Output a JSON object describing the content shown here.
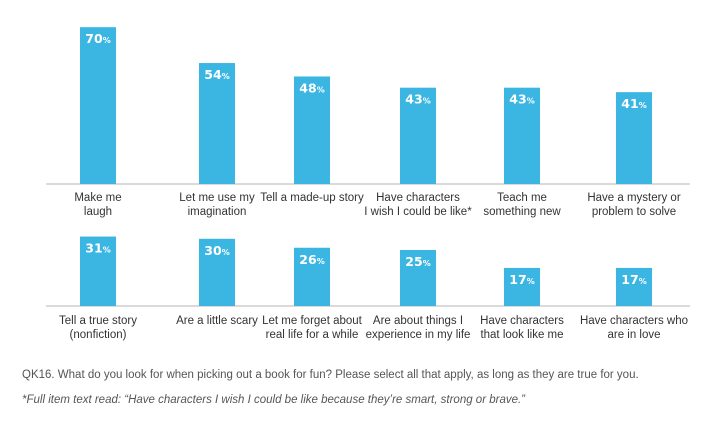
{
  "chart_data": [
    {
      "type": "bar",
      "categories": [
        [
          "Make me",
          "laugh"
        ],
        [
          "Let me use my",
          "imagination"
        ],
        [
          "Tell a made-up story"
        ],
        [
          "Have characters",
          "I wish I could be like*"
        ],
        [
          "Teach me",
          "something new"
        ],
        [
          "Have a mystery or",
          "problem to solve"
        ]
      ],
      "values": [
        70,
        54,
        48,
        43,
        43,
        41
      ],
      "data_labels": [
        "70%",
        "54%",
        "48%",
        "43%",
        "43%",
        "41%"
      ],
      "color": "#3bb6e3",
      "ylim": [
        0,
        70
      ]
    },
    {
      "type": "bar",
      "categories": [
        [
          "Tell a true story",
          "(nonfiction)"
        ],
        [
          "Are a little scary"
        ],
        [
          "Let me forget about",
          "real life for a while"
        ],
        [
          "Are about things I",
          "experience in my life"
        ],
        [
          "Have characters",
          "that look like me"
        ],
        [
          "Have characters who",
          "are in love"
        ]
      ],
      "values": [
        31,
        30,
        26,
        25,
        17,
        17
      ],
      "data_labels": [
        "31%",
        "30%",
        "26%",
        "25%",
        "17%",
        "17%"
      ],
      "color": "#3bb6e3",
      "ylim": [
        0,
        31
      ]
    }
  ],
  "footnotes": {
    "question": "QK16. What do you look for when picking out a book for fun? Please select all that apply, as long as they are true for you.",
    "note": "*Full item text read: “Have characters I wish I could be like because they’re smart, strong or brave.”"
  }
}
